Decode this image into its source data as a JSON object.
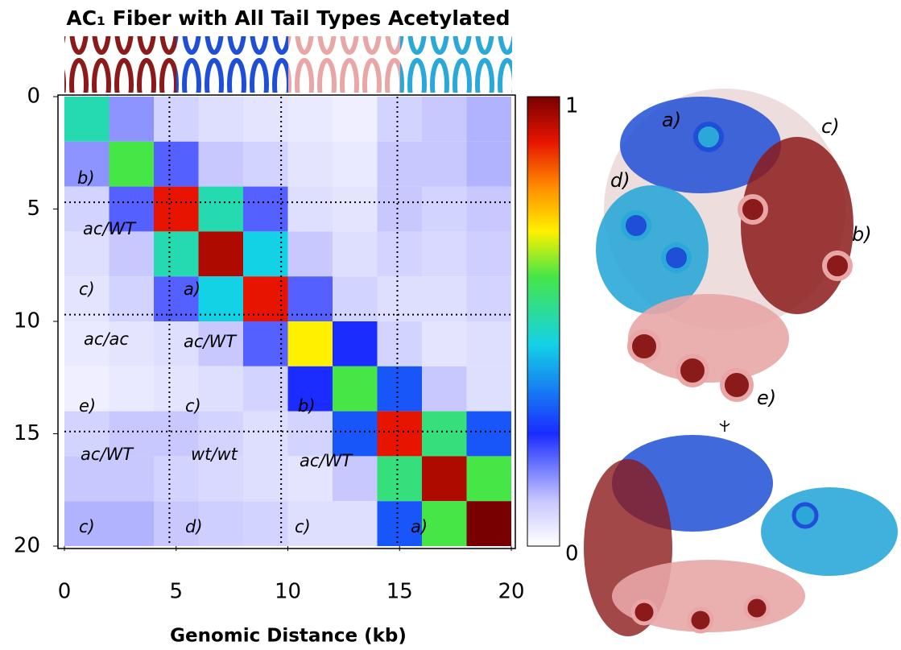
{
  "chart_data": {
    "type": "heatmap",
    "title": "AC₁ Fiber with All Tail Types Acetylated",
    "x_label": "Genomic Distance (kb)",
    "bins": [
      0,
      2,
      4,
      6,
      8,
      10,
      12,
      14,
      16,
      18,
      20
    ],
    "values": [
      [
        0.5,
        0.15,
        0.08,
        0.06,
        0.05,
        0.04,
        0.03,
        0.08,
        0.1,
        0.12
      ],
      [
        0.15,
        0.6,
        0.2,
        0.1,
        0.08,
        0.05,
        0.04,
        0.1,
        0.1,
        0.12
      ],
      [
        0.08,
        0.2,
        0.9,
        0.5,
        0.2,
        0.06,
        0.05,
        0.1,
        0.08,
        0.1
      ],
      [
        0.06,
        0.1,
        0.5,
        0.95,
        0.45,
        0.1,
        0.06,
        0.08,
        0.07,
        0.09
      ],
      [
        0.05,
        0.08,
        0.2,
        0.45,
        0.9,
        0.2,
        0.08,
        0.06,
        0.06,
        0.08
      ],
      [
        0.04,
        0.05,
        0.06,
        0.1,
        0.2,
        0.7,
        0.25,
        0.08,
        0.05,
        0.06
      ],
      [
        0.03,
        0.04,
        0.05,
        0.06,
        0.08,
        0.25,
        0.6,
        0.3,
        0.1,
        0.06
      ],
      [
        0.08,
        0.1,
        0.1,
        0.08,
        0.06,
        0.08,
        0.3,
        0.9,
        0.55,
        0.3
      ],
      [
        0.1,
        0.1,
        0.08,
        0.07,
        0.06,
        0.05,
        0.1,
        0.55,
        0.95,
        0.6
      ],
      [
        0.12,
        0.12,
        0.1,
        0.09,
        0.08,
        0.06,
        0.06,
        0.3,
        0.6,
        1
      ]
    ],
    "xlim": [
      0,
      20
    ],
    "ylim": [
      0,
      20
    ],
    "xticks": [
      0,
      5,
      10,
      15,
      20
    ],
    "yticks": [
      0,
      5,
      10,
      15,
      20
    ],
    "y_inverted": true,
    "boundaries": [
      4.7,
      9.7,
      14.9
    ],
    "colorbar_lim": [
      0,
      1
    ],
    "colorbar_ticks": [
      0,
      1
    ],
    "annotations": [
      "b)",
      "ac/WT",
      "c)",
      "a)",
      "ac/ac",
      "ac/WT",
      "e)",
      "c)",
      "b)",
      "ac/WT",
      "wt/wt",
      "ac/WT",
      "c)",
      "d)",
      "c)",
      "a)"
    ],
    "structure_labels": [
      "a)",
      "c)",
      "d)",
      "b)",
      "e)"
    ]
  }
}
